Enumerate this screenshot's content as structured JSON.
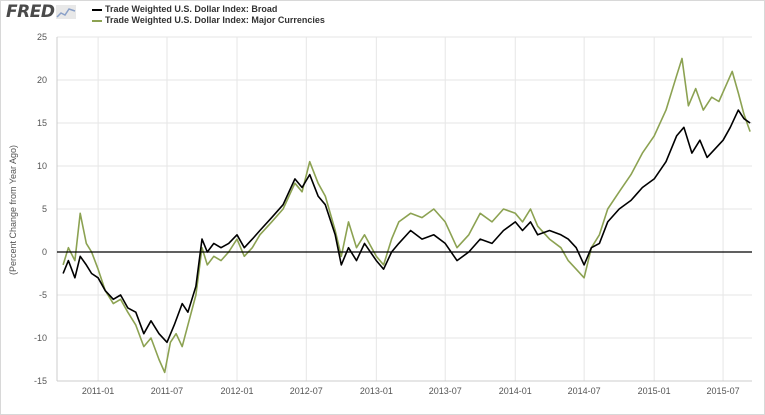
{
  "logo": {
    "text": "FRED",
    "graph_icon": "line-graph-icon"
  },
  "colors": {
    "broad": "#000000",
    "major": "#8ca252",
    "zero_line": "#000000",
    "grid": "#e6e6e6"
  },
  "chart_data": {
    "type": "line",
    "title": "",
    "xlabel": "",
    "ylabel": "(Percent Change from Year Ago)",
    "ylim": [
      -15,
      25
    ],
    "xlim": [
      "2010-09-15",
      "2015-09-15"
    ],
    "grid": true,
    "legend_position": "top-left",
    "yticks": [
      "25",
      "20",
      "15",
      "10",
      "5",
      "0",
      "-5",
      "-10",
      "-15"
    ],
    "xticks": [
      {
        "date": "2011-01-01",
        "label": "2011-01"
      },
      {
        "date": "2011-07-01",
        "label": "2011-07"
      },
      {
        "date": "2012-01-01",
        "label": "2012-01"
      },
      {
        "date": "2012-07-01",
        "label": "2012-07"
      },
      {
        "date": "2013-01-01",
        "label": "2013-01"
      },
      {
        "date": "2013-07-01",
        "label": "2013-07"
      },
      {
        "date": "2014-01-01",
        "label": "2014-01"
      },
      {
        "date": "2014-07-01",
        "label": "2014-07"
      },
      {
        "date": "2015-01-01",
        "label": "2015-01"
      },
      {
        "date": "2015-07-01",
        "label": "2015-07"
      }
    ],
    "series": [
      {
        "name": "Trade Weighted U.S. Dollar Index: Broad",
        "color": "#000000",
        "points": [
          [
            "2010-10-01",
            -2.5
          ],
          [
            "2010-10-15",
            -1.0
          ],
          [
            "2010-11-01",
            -3.0
          ],
          [
            "2010-11-15",
            -0.5
          ],
          [
            "2010-12-01",
            -1.5
          ],
          [
            "2010-12-15",
            -2.5
          ],
          [
            "2011-01-01",
            -3.0
          ],
          [
            "2011-01-20",
            -4.5
          ],
          [
            "2011-02-10",
            -5.5
          ],
          [
            "2011-03-01",
            -5.0
          ],
          [
            "2011-03-20",
            -6.5
          ],
          [
            "2011-04-10",
            -7.0
          ],
          [
            "2011-05-01",
            -9.5
          ],
          [
            "2011-05-20",
            -8.0
          ],
          [
            "2011-06-10",
            -9.5
          ],
          [
            "2011-07-01",
            -10.5
          ],
          [
            "2011-07-20",
            -8.5
          ],
          [
            "2011-08-10",
            -6.0
          ],
          [
            "2011-08-25",
            -7.0
          ],
          [
            "2011-09-15",
            -4.0
          ],
          [
            "2011-10-01",
            1.5
          ],
          [
            "2011-10-15",
            0.0
          ],
          [
            "2011-11-01",
            1.0
          ],
          [
            "2011-11-20",
            0.5
          ],
          [
            "2011-12-10",
            1.0
          ],
          [
            "2012-01-01",
            2.0
          ],
          [
            "2012-01-20",
            0.5
          ],
          [
            "2012-02-10",
            1.5
          ],
          [
            "2012-03-01",
            2.5
          ],
          [
            "2012-04-01",
            4.0
          ],
          [
            "2012-05-01",
            5.5
          ],
          [
            "2012-06-01",
            8.5
          ],
          [
            "2012-06-20",
            7.5
          ],
          [
            "2012-07-10",
            9.0
          ],
          [
            "2012-08-01",
            6.5
          ],
          [
            "2012-08-20",
            5.5
          ],
          [
            "2012-09-15",
            2.0
          ],
          [
            "2012-10-01",
            -1.5
          ],
          [
            "2012-10-20",
            0.5
          ],
          [
            "2012-11-10",
            -1.0
          ],
          [
            "2012-12-01",
            1.0
          ],
          [
            "2013-01-01",
            -1.0
          ],
          [
            "2013-01-20",
            -2.0
          ],
          [
            "2013-02-10",
            0.0
          ],
          [
            "2013-03-01",
            1.0
          ],
          [
            "2013-04-01",
            2.5
          ],
          [
            "2013-05-01",
            1.5
          ],
          [
            "2013-06-01",
            2.0
          ],
          [
            "2013-07-01",
            1.0
          ],
          [
            "2013-08-01",
            -1.0
          ],
          [
            "2013-09-01",
            0.0
          ],
          [
            "2013-10-01",
            1.5
          ],
          [
            "2013-11-01",
            1.0
          ],
          [
            "2013-12-01",
            2.5
          ],
          [
            "2014-01-01",
            3.5
          ],
          [
            "2014-01-20",
            2.5
          ],
          [
            "2014-02-10",
            3.5
          ],
          [
            "2014-03-01",
            2.0
          ],
          [
            "2014-04-01",
            2.5
          ],
          [
            "2014-05-01",
            2.0
          ],
          [
            "2014-05-20",
            1.5
          ],
          [
            "2014-06-10",
            0.5
          ],
          [
            "2014-07-01",
            -1.5
          ],
          [
            "2014-07-20",
            0.5
          ],
          [
            "2014-08-10",
            1.0
          ],
          [
            "2014-09-01",
            3.5
          ],
          [
            "2014-10-01",
            5.0
          ],
          [
            "2014-11-01",
            6.0
          ],
          [
            "2014-12-01",
            7.5
          ],
          [
            "2015-01-01",
            8.5
          ],
          [
            "2015-02-01",
            10.5
          ],
          [
            "2015-03-01",
            13.5
          ],
          [
            "2015-03-20",
            14.5
          ],
          [
            "2015-04-10",
            11.5
          ],
          [
            "2015-05-01",
            13.0
          ],
          [
            "2015-05-20",
            11.0
          ],
          [
            "2015-06-10",
            12.0
          ],
          [
            "2015-07-01",
            13.0
          ],
          [
            "2015-07-20",
            14.5
          ],
          [
            "2015-08-10",
            16.5
          ],
          [
            "2015-08-25",
            15.5
          ],
          [
            "2015-09-10",
            15.0
          ]
        ]
      },
      {
        "name": "Trade Weighted U.S. Dollar Index: Major Currencies",
        "color": "#8ca252",
        "points": [
          [
            "2010-10-01",
            -1.5
          ],
          [
            "2010-10-15",
            0.5
          ],
          [
            "2010-11-01",
            -1.0
          ],
          [
            "2010-11-15",
            4.5
          ],
          [
            "2010-12-01",
            1.0
          ],
          [
            "2010-12-15",
            0.0
          ],
          [
            "2011-01-01",
            -2.0
          ],
          [
            "2011-01-20",
            -4.5
          ],
          [
            "2011-02-10",
            -6.0
          ],
          [
            "2011-03-01",
            -5.5
          ],
          [
            "2011-03-20",
            -7.0
          ],
          [
            "2011-04-10",
            -8.5
          ],
          [
            "2011-05-01",
            -11.0
          ],
          [
            "2011-05-20",
            -10.0
          ],
          [
            "2011-06-10",
            -12.5
          ],
          [
            "2011-06-25",
            -14.0
          ],
          [
            "2011-07-10",
            -10.5
          ],
          [
            "2011-07-25",
            -9.5
          ],
          [
            "2011-08-10",
            -11.0
          ],
          [
            "2011-08-25",
            -8.5
          ],
          [
            "2011-09-15",
            -5.0
          ],
          [
            "2011-10-01",
            0.5
          ],
          [
            "2011-10-15",
            -1.5
          ],
          [
            "2011-11-01",
            -0.5
          ],
          [
            "2011-11-20",
            -1.0
          ],
          [
            "2011-12-10",
            0.0
          ],
          [
            "2012-01-01",
            1.5
          ],
          [
            "2012-01-20",
            -0.5
          ],
          [
            "2012-02-10",
            0.5
          ],
          [
            "2012-03-01",
            2.0
          ],
          [
            "2012-04-01",
            3.5
          ],
          [
            "2012-05-01",
            5.0
          ],
          [
            "2012-06-01",
            8.0
          ],
          [
            "2012-06-20",
            7.0
          ],
          [
            "2012-07-10",
            10.5
          ],
          [
            "2012-08-01",
            8.0
          ],
          [
            "2012-08-20",
            6.5
          ],
          [
            "2012-09-15",
            2.5
          ],
          [
            "2012-10-01",
            -0.5
          ],
          [
            "2012-10-20",
            3.5
          ],
          [
            "2012-11-10",
            0.5
          ],
          [
            "2012-12-01",
            2.0
          ],
          [
            "2013-01-01",
            -0.5
          ],
          [
            "2013-01-20",
            -1.5
          ],
          [
            "2013-02-10",
            1.5
          ],
          [
            "2013-03-01",
            3.5
          ],
          [
            "2013-04-01",
            4.5
          ],
          [
            "2013-05-01",
            4.0
          ],
          [
            "2013-06-01",
            5.0
          ],
          [
            "2013-07-01",
            3.5
          ],
          [
            "2013-08-01",
            0.5
          ],
          [
            "2013-09-01",
            2.0
          ],
          [
            "2013-10-01",
            4.5
          ],
          [
            "2013-11-01",
            3.5
          ],
          [
            "2013-12-01",
            5.0
          ],
          [
            "2014-01-01",
            4.5
          ],
          [
            "2014-01-20",
            3.5
          ],
          [
            "2014-02-10",
            5.0
          ],
          [
            "2014-03-01",
            3.0
          ],
          [
            "2014-04-01",
            1.5
          ],
          [
            "2014-05-01",
            0.5
          ],
          [
            "2014-05-20",
            -1.0
          ],
          [
            "2014-06-10",
            -2.0
          ],
          [
            "2014-07-01",
            -3.0
          ],
          [
            "2014-07-20",
            0.5
          ],
          [
            "2014-08-10",
            2.0
          ],
          [
            "2014-09-01",
            5.0
          ],
          [
            "2014-10-01",
            7.0
          ],
          [
            "2014-11-01",
            9.0
          ],
          [
            "2014-12-01",
            11.5
          ],
          [
            "2015-01-01",
            13.5
          ],
          [
            "2015-02-01",
            16.5
          ],
          [
            "2015-03-01",
            20.5
          ],
          [
            "2015-03-15",
            22.5
          ],
          [
            "2015-04-01",
            17.0
          ],
          [
            "2015-04-20",
            19.0
          ],
          [
            "2015-05-10",
            16.5
          ],
          [
            "2015-06-01",
            18.0
          ],
          [
            "2015-06-20",
            17.5
          ],
          [
            "2015-07-10",
            19.5
          ],
          [
            "2015-07-25",
            21.0
          ],
          [
            "2015-08-10",
            18.5
          ],
          [
            "2015-08-25",
            16.0
          ],
          [
            "2015-09-10",
            14.0
          ]
        ]
      }
    ]
  }
}
